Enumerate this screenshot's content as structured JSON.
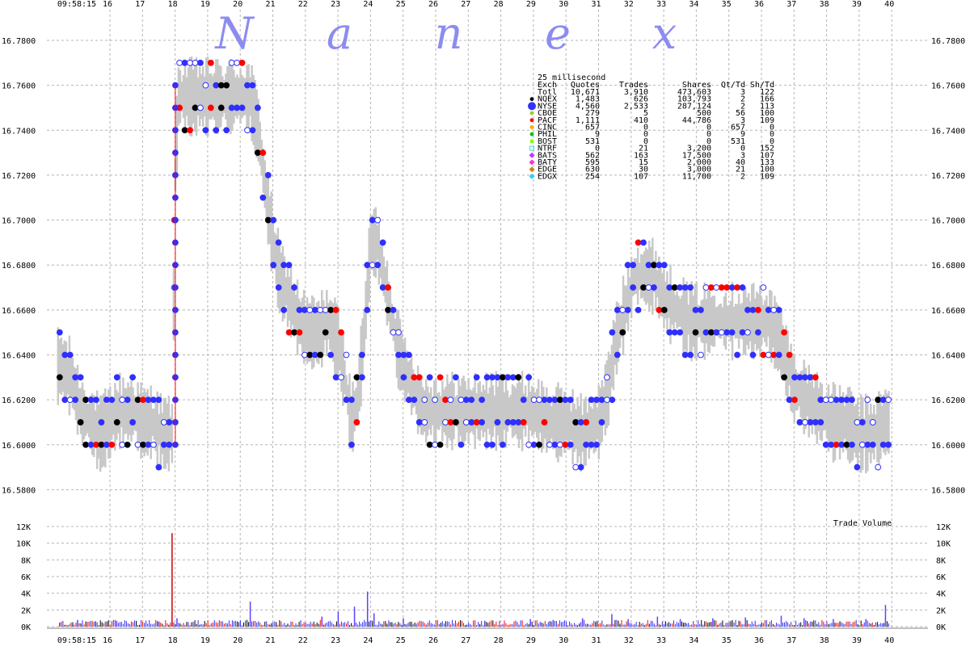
{
  "chart_data": {
    "type": "scatter",
    "watermark": [
      "N",
      "a",
      "n",
      "e",
      "x"
    ],
    "time_start_label": "09:58:15",
    "x_ticks": [
      "16",
      "17",
      "18",
      "19",
      "20",
      "21",
      "22",
      "23",
      "24",
      "25",
      "26",
      "27",
      "28",
      "29",
      "30",
      "31",
      "32",
      "33",
      "34",
      "35",
      "36",
      "37",
      "38",
      "39",
      "40"
    ],
    "price_axis": {
      "ylim": [
        16.57,
        16.79
      ],
      "ticks": [
        "16.7800",
        "16.7600",
        "16.7400",
        "16.7200",
        "16.7000",
        "16.6800",
        "16.6600",
        "16.6400",
        "16.6200",
        "16.6000",
        "16.5800"
      ]
    },
    "volume_axis": {
      "label": "Trade Volume",
      "ylim": [
        0,
        12000
      ],
      "ticks": [
        "12K",
        "10K",
        "8K",
        "6K",
        "4K",
        "2K",
        "0K"
      ]
    },
    "stats_table": {
      "title": "25 millisecond",
      "headers": [
        "Exch",
        "Quotes",
        "Trades",
        "Shares",
        "Qt/Td",
        "Sh/Td"
      ],
      "rows": [
        {
          "exch": "Totl",
          "quotes": "10,671",
          "trades": "3,910",
          "shares": "473,603",
          "qt_td": "3",
          "sh_td": "122",
          "color": "",
          "marker": ""
        },
        {
          "exch": "NQEX",
          "quotes": "1,483",
          "trades": "626",
          "shares": "103,793",
          "qt_td": "2",
          "sh_td": "166",
          "color": "#000000",
          "marker": "dot"
        },
        {
          "exch": "NYSE",
          "quotes": "4,560",
          "trades": "2,533",
          "shares": "287,124",
          "qt_td": "2",
          "sh_td": "113",
          "color": "#3333ff",
          "marker": "big-dot"
        },
        {
          "exch": "CBOE",
          "quotes": "279",
          "trades": "5",
          "shares": "500",
          "qt_td": "56",
          "sh_td": "100",
          "color": "#9acd32",
          "marker": "dot"
        },
        {
          "exch": "PACF",
          "quotes": "1,111",
          "trades": "410",
          "shares": "44,786",
          "qt_td": "3",
          "sh_td": "109",
          "color": "#ff0000",
          "marker": "dot"
        },
        {
          "exch": "CINC",
          "quotes": "657",
          "trades": "0",
          "shares": "0",
          "qt_td": "657",
          "sh_td": "0",
          "color": "#ffa500",
          "marker": "dot"
        },
        {
          "exch": "PHIL",
          "quotes": "9",
          "trades": "0",
          "shares": "0",
          "qt_td": "9",
          "sh_td": "0",
          "color": "#00c000",
          "marker": "dot"
        },
        {
          "exch": "BOST",
          "quotes": "531",
          "trades": "0",
          "shares": "0",
          "qt_td": "531",
          "sh_td": "0",
          "color": "#7fff00",
          "marker": "dot"
        },
        {
          "exch": "NTRF",
          "quotes": "0",
          "trades": "21",
          "shares": "3,200",
          "qt_td": "0",
          "sh_td": "152",
          "color": "#40e0d0",
          "marker": "square"
        },
        {
          "exch": "BATS",
          "quotes": "562",
          "trades": "163",
          "shares": "17,500",
          "qt_td": "3",
          "sh_td": "107",
          "color": "#cc33ff",
          "marker": "diamond"
        },
        {
          "exch": "BATY",
          "quotes": "595",
          "trades": "15",
          "shares": "2,000",
          "qt_td": "40",
          "sh_td": "133",
          "color": "#ff33cc",
          "marker": "diamond"
        },
        {
          "exch": "EDGE",
          "quotes": "630",
          "trades": "30",
          "shares": "3,000",
          "qt_td": "21",
          "sh_td": "100",
          "color": "#cc8800",
          "marker": "diamond"
        },
        {
          "exch": "EDGX",
          "quotes": "254",
          "trades": "107",
          "shares": "11,700",
          "qt_td": "2",
          "sh_td": "109",
          "color": "#33ccff",
          "marker": "diamond"
        }
      ]
    },
    "price_path": [
      [
        15.5,
        16.635
      ],
      [
        15.8,
        16.63
      ],
      [
        16.1,
        16.615
      ],
      [
        16.4,
        16.61
      ],
      [
        16.7,
        16.605
      ],
      [
        17.0,
        16.61
      ],
      [
        17.3,
        16.615
      ],
      [
        17.7,
        16.615
      ],
      [
        18.0,
        16.61
      ],
      [
        18.3,
        16.61
      ],
      [
        18.6,
        16.605
      ],
      [
        18.9,
        16.605
      ],
      [
        19.0,
        16.72
      ],
      [
        19.1,
        16.755
      ],
      [
        19.5,
        16.755
      ],
      [
        20.0,
        16.755
      ],
      [
        20.5,
        16.755
      ],
      [
        21.0,
        16.755
      ],
      [
        21.3,
        16.755
      ],
      [
        21.55,
        16.74
      ],
      [
        21.8,
        16.71
      ],
      [
        22.0,
        16.69
      ],
      [
        22.2,
        16.675
      ],
      [
        22.5,
        16.665
      ],
      [
        22.8,
        16.655
      ],
      [
        23.1,
        16.65
      ],
      [
        23.4,
        16.65
      ],
      [
        23.7,
        16.655
      ],
      [
        24.0,
        16.645
      ],
      [
        24.2,
        16.63
      ],
      [
        24.4,
        16.61
      ],
      [
        24.6,
        16.62
      ],
      [
        24.8,
        16.65
      ],
      [
        25.0,
        16.69
      ],
      [
        25.2,
        16.69
      ],
      [
        25.4,
        16.675
      ],
      [
        25.6,
        16.66
      ],
      [
        25.8,
        16.645
      ],
      [
        26.0,
        16.635
      ],
      [
        26.3,
        16.625
      ],
      [
        26.6,
        16.615
      ],
      [
        27.0,
        16.615
      ],
      [
        27.5,
        16.615
      ],
      [
        28.0,
        16.615
      ],
      [
        28.5,
        16.615
      ],
      [
        29.0,
        16.615
      ],
      [
        29.5,
        16.615
      ],
      [
        30.0,
        16.615
      ],
      [
        30.5,
        16.61
      ],
      [
        31.0,
        16.61
      ],
      [
        31.5,
        16.605
      ],
      [
        32.0,
        16.61
      ],
      [
        32.3,
        16.625
      ],
      [
        32.5,
        16.645
      ],
      [
        32.7,
        16.655
      ],
      [
        32.9,
        16.665
      ],
      [
        33.1,
        16.675
      ],
      [
        33.4,
        16.675
      ],
      [
        33.7,
        16.675
      ],
      [
        34.0,
        16.665
      ],
      [
        34.4,
        16.66
      ],
      [
        34.8,
        16.655
      ],
      [
        35.2,
        16.655
      ],
      [
        35.6,
        16.655
      ],
      [
        36.0,
        16.655
      ],
      [
        36.4,
        16.655
      ],
      [
        36.8,
        16.655
      ],
      [
        37.2,
        16.655
      ],
      [
        37.6,
        16.645
      ],
      [
        38.0,
        16.625
      ],
      [
        38.4,
        16.62
      ],
      [
        38.8,
        16.615
      ],
      [
        39.2,
        16.61
      ],
      [
        39.6,
        16.61
      ],
      [
        40.0,
        16.605
      ],
      [
        40.4,
        16.605
      ],
      [
        40.8,
        16.61
      ]
    ],
    "volume_spikes": [
      [
        16.0,
        800
      ],
      [
        17.2,
        700
      ],
      [
        18.5,
        600
      ],
      [
        18.9,
        11200
      ],
      [
        19.05,
        1000
      ],
      [
        21.3,
        3000
      ],
      [
        23.5,
        1200
      ],
      [
        24.0,
        1800
      ],
      [
        24.5,
        2400
      ],
      [
        24.9,
        4200
      ],
      [
        25.1,
        1600
      ],
      [
        26.0,
        1000
      ],
      [
        28.5,
        700
      ],
      [
        29.9,
        900
      ],
      [
        30.6,
        800
      ],
      [
        31.5,
        1000
      ],
      [
        32.4,
        1500
      ],
      [
        32.9,
        900
      ],
      [
        33.8,
        1200
      ],
      [
        34.5,
        900
      ],
      [
        35.5,
        1000
      ],
      [
        36.5,
        1100
      ],
      [
        37.6,
        1300
      ],
      [
        38.3,
        1000
      ],
      [
        39.2,
        900
      ],
      [
        40.2,
        900
      ],
      [
        40.8,
        2600
      ]
    ]
  }
}
